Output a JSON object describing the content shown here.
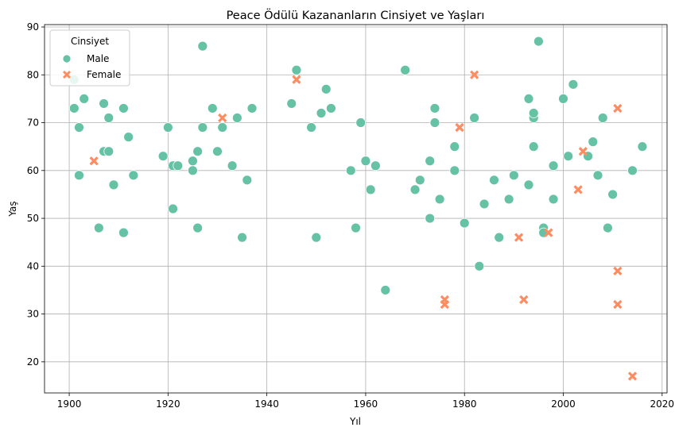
{
  "chart_data": {
    "type": "scatter",
    "title": "Peace Ödülü Kazananların Cinsiyet ve Yaşları",
    "xlabel": "Yıl",
    "ylabel": "Yaş",
    "xlim": [
      1895,
      2021
    ],
    "ylim": [
      13.5,
      90.5
    ],
    "xticks": [
      1900,
      1920,
      1940,
      1960,
      1980,
      2000,
      2020
    ],
    "yticks": [
      20,
      30,
      40,
      50,
      60,
      70,
      80,
      90
    ],
    "grid": true,
    "legend": {
      "title": "Cinsiyet",
      "placement": "top-left"
    },
    "series": [
      {
        "name": "Male",
        "marker": "circle",
        "color": "#66c2a5",
        "points": [
          [
            1901,
            73
          ],
          [
            1901,
            79
          ],
          [
            1902,
            69
          ],
          [
            1902,
            59
          ],
          [
            1903,
            75
          ],
          [
            1906,
            48
          ],
          [
            1907,
            74
          ],
          [
            1907,
            64
          ],
          [
            1908,
            71
          ],
          [
            1908,
            64
          ],
          [
            1909,
            57
          ],
          [
            1911,
            73
          ],
          [
            1911,
            47
          ],
          [
            1912,
            67
          ],
          [
            1913,
            59
          ],
          [
            1919,
            63
          ],
          [
            1920,
            69
          ],
          [
            1921,
            61
          ],
          [
            1921,
            52
          ],
          [
            1922,
            61
          ],
          [
            1925,
            62
          ],
          [
            1925,
            60
          ],
          [
            1926,
            64
          ],
          [
            1926,
            48
          ],
          [
            1927,
            86
          ],
          [
            1927,
            69
          ],
          [
            1929,
            73
          ],
          [
            1930,
            64
          ],
          [
            1931,
            69
          ],
          [
            1933,
            61
          ],
          [
            1934,
            71
          ],
          [
            1935,
            46
          ],
          [
            1936,
            58
          ],
          [
            1937,
            73
          ],
          [
            1945,
            74
          ],
          [
            1946,
            81
          ],
          [
            1949,
            69
          ],
          [
            1950,
            46
          ],
          [
            1951,
            72
          ],
          [
            1952,
            77
          ],
          [
            1953,
            73
          ],
          [
            1957,
            60
          ],
          [
            1958,
            48
          ],
          [
            1959,
            70
          ],
          [
            1960,
            62
          ],
          [
            1961,
            56
          ],
          [
            1962,
            61
          ],
          [
            1964,
            35
          ],
          [
            1968,
            81
          ],
          [
            1970,
            56
          ],
          [
            1971,
            58
          ],
          [
            1973,
            62
          ],
          [
            1973,
            50
          ],
          [
            1974,
            73
          ],
          [
            1974,
            70
          ],
          [
            1975,
            54
          ],
          [
            1978,
            65
          ],
          [
            1978,
            60
          ],
          [
            1980,
            49
          ],
          [
            1982,
            71
          ],
          [
            1983,
            40
          ],
          [
            1984,
            53
          ],
          [
            1986,
            58
          ],
          [
            1987,
            46
          ],
          [
            1989,
            54
          ],
          [
            1990,
            59
          ],
          [
            1993,
            75
          ],
          [
            1993,
            57
          ],
          [
            1994,
            71
          ],
          [
            1994,
            72
          ],
          [
            1994,
            65
          ],
          [
            1995,
            87
          ],
          [
            1996,
            48
          ],
          [
            1996,
            47
          ],
          [
            1998,
            61
          ],
          [
            1998,
            54
          ],
          [
            2000,
            75
          ],
          [
            2001,
            63
          ],
          [
            2002,
            78
          ],
          [
            2005,
            63
          ],
          [
            2006,
            66
          ],
          [
            2007,
            59
          ],
          [
            2008,
            71
          ],
          [
            2009,
            48
          ],
          [
            2010,
            55
          ],
          [
            2014,
            60
          ],
          [
            2016,
            65
          ]
        ]
      },
      {
        "name": "Female",
        "marker": "x",
        "color": "#fc8d62",
        "points": [
          [
            1905,
            62
          ],
          [
            1931,
            71
          ],
          [
            1946,
            79
          ],
          [
            1976,
            33
          ],
          [
            1976,
            32
          ],
          [
            1979,
            69
          ],
          [
            1982,
            80
          ],
          [
            1991,
            46
          ],
          [
            1992,
            33
          ],
          [
            1997,
            47
          ],
          [
            2003,
            56
          ],
          [
            2004,
            64
          ],
          [
            2011,
            73
          ],
          [
            2011,
            39
          ],
          [
            2011,
            32
          ],
          [
            2014,
            17
          ]
        ]
      }
    ]
  }
}
